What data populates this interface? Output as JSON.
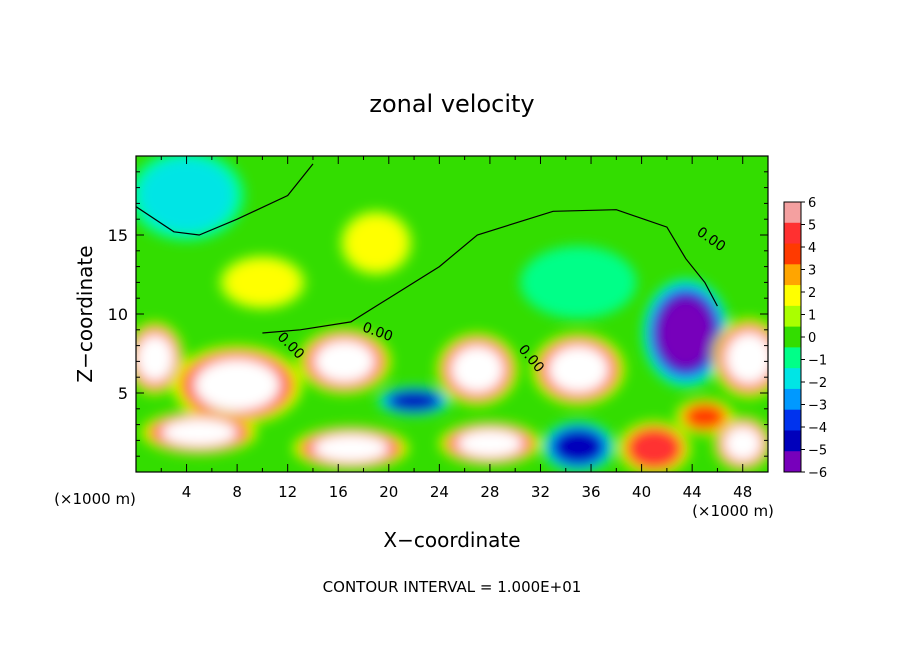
{
  "chart_data": {
    "type": "heatmap",
    "title": "zonal velocity",
    "xlabel": "X−coordinate",
    "ylabel": "Z−coordinate",
    "x_unit": "(×1000 m)",
    "x_ticks": [
      4,
      8,
      12,
      16,
      20,
      24,
      28,
      32,
      36,
      40,
      44,
      48
    ],
    "y_ticks": [
      5,
      10,
      15
    ],
    "xlim": [
      0,
      50
    ],
    "ylim": [
      0,
      20
    ],
    "contour_interval_text": "CONTOUR INTERVAL = 1.000E+01",
    "contour_labels": [
      "0.00",
      "0.00",
      "0.00",
      "0.00"
    ],
    "colorbar": {
      "levels": [
        6,
        5,
        4,
        3,
        2,
        1,
        0,
        -1,
        -2,
        -3,
        -4,
        -5,
        -6
      ],
      "colors": [
        "#f4a0a0",
        "#ff3030",
        "#ff3a00",
        "#ffa500",
        "#ffff00",
        "#aaff00",
        "#33dd00",
        "#00ff88",
        "#00e5e5",
        "#0099ff",
        "#0033ee",
        "#0000bb",
        "#7700bb"
      ]
    },
    "blobs": [
      {
        "x": 4,
        "z": 17.5,
        "rx": 4,
        "rz": 2.5,
        "v": -2
      },
      {
        "x": 19,
        "z": 14.5,
        "rx": 2.5,
        "rz": 1.8,
        "v": 1.5
      },
      {
        "x": 10,
        "z": 12,
        "rx": 3,
        "rz": 1.5,
        "v": 2
      },
      {
        "x": 35,
        "z": 12,
        "rx": 4,
        "rz": 2,
        "v": -1
      },
      {
        "x": 43.5,
        "z": 8.8,
        "rx": 3,
        "rz": 3,
        "v": -5.5
      },
      {
        "x": 1.5,
        "z": 7.2,
        "rx": 2,
        "rz": 2,
        "v": 9
      },
      {
        "x": 8,
        "z": 5.5,
        "rx": 4.5,
        "rz": 2.2,
        "v": 9
      },
      {
        "x": 16.5,
        "z": 7,
        "rx": 3.2,
        "rz": 1.8,
        "v": 9
      },
      {
        "x": 27,
        "z": 6.5,
        "rx": 2.8,
        "rz": 2,
        "v": 9
      },
      {
        "x": 35,
        "z": 6.5,
        "rx": 3.2,
        "rz": 2,
        "v": 9
      },
      {
        "x": 48.5,
        "z": 7.2,
        "rx": 2.5,
        "rz": 2.2,
        "v": 9
      },
      {
        "x": 22,
        "z": 4.5,
        "rx": 2.5,
        "rz": 0.8,
        "v": -5
      },
      {
        "x": 5,
        "z": 2.5,
        "rx": 4,
        "rz": 1.2,
        "v": 9
      },
      {
        "x": 17,
        "z": 1.5,
        "rx": 4,
        "rz": 1.2,
        "v": 9
      },
      {
        "x": 28,
        "z": 1.8,
        "rx": 3.5,
        "rz": 1.2,
        "v": 9
      },
      {
        "x": 35,
        "z": 1.6,
        "rx": 2.5,
        "rz": 1.4,
        "v": -5
      },
      {
        "x": 41,
        "z": 1.5,
        "rx": 2.5,
        "rz": 1.5,
        "v": 5
      },
      {
        "x": 48,
        "z": 1.8,
        "rx": 2,
        "rz": 1.5,
        "v": 9
      },
      {
        "x": 45,
        "z": 3.5,
        "rx": 2,
        "rz": 1,
        "v": 4
      }
    ]
  }
}
